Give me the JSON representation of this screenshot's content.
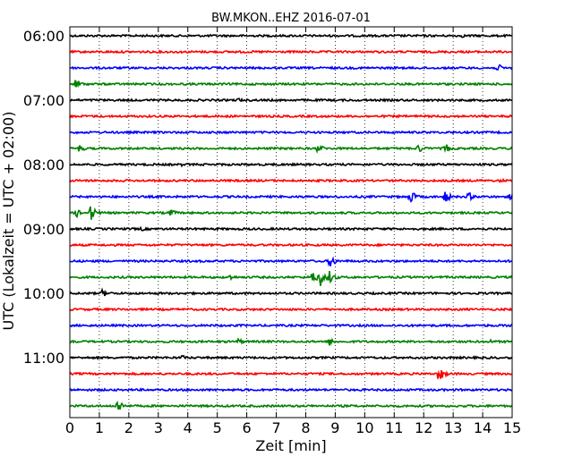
{
  "chart_data": {
    "type": "line",
    "title": "BW.MKON..EHZ 2016-07-01",
    "xlabel": "Zeit  [min]",
    "ylabel": "UTC (Lokalzeit = UTC + 02:00)",
    "xlim": [
      0,
      15
    ],
    "x_ticks": [
      "0",
      "1",
      "2",
      "3",
      "4",
      "5",
      "6",
      "7",
      "8",
      "9",
      "10",
      "11",
      "12",
      "13",
      "14",
      "15"
    ],
    "y_tick_labels": [
      "06:00",
      "07:00",
      "08:00",
      "09:00",
      "10:00",
      "11:00"
    ],
    "grid": "vertical-dotted",
    "series": [
      {
        "start": "06:00",
        "color": "#000000",
        "events": [
          {
            "x": 13.3,
            "amp": 2
          }
        ]
      },
      {
        "start": "06:15",
        "color": "#ff0000",
        "events": []
      },
      {
        "start": "06:30",
        "color": "#0000ff",
        "events": [
          {
            "x": 14.5,
            "amp": 5
          }
        ]
      },
      {
        "start": "06:45",
        "color": "#008000",
        "events": [
          {
            "x": 0.2,
            "amp": 7
          }
        ]
      },
      {
        "start": "07:00",
        "color": "#000000",
        "events": [
          {
            "x": 5.7,
            "amp": 3
          }
        ]
      },
      {
        "start": "07:15",
        "color": "#ff0000",
        "events": []
      },
      {
        "start": "07:30",
        "color": "#0000ff",
        "events": []
      },
      {
        "start": "07:45",
        "color": "#008000",
        "events": [
          {
            "x": 0.3,
            "amp": 5
          },
          {
            "x": 8.4,
            "amp": 6
          },
          {
            "x": 11.8,
            "amp": 6
          },
          {
            "x": 12.7,
            "amp": 7
          }
        ]
      },
      {
        "start": "08:00",
        "color": "#000000",
        "events": [
          {
            "x": 3.8,
            "amp": 2
          }
        ]
      },
      {
        "start": "08:15",
        "color": "#ff0000",
        "events": [
          {
            "x": 14.6,
            "amp": 3
          }
        ]
      },
      {
        "start": "08:30",
        "color": "#0000ff",
        "events": [
          {
            "x": 11.5,
            "amp": 10
          },
          {
            "x": 12.7,
            "amp": 8
          },
          {
            "x": 13.5,
            "amp": 6
          },
          {
            "x": 14.9,
            "amp": 4
          }
        ]
      },
      {
        "start": "08:45",
        "color": "#008000",
        "events": [
          {
            "x": 0.2,
            "amp": 6
          },
          {
            "x": 0.7,
            "amp": 10
          },
          {
            "x": 3.4,
            "amp": 5
          }
        ]
      },
      {
        "start": "09:00",
        "color": "#000000",
        "events": [
          {
            "x": 2.4,
            "amp": 3
          },
          {
            "x": 8.0,
            "amp": 2
          }
        ]
      },
      {
        "start": "09:15",
        "color": "#ff0000",
        "events": []
      },
      {
        "start": "09:30",
        "color": "#0000ff",
        "events": [
          {
            "x": 8.8,
            "amp": 9
          }
        ]
      },
      {
        "start": "09:45",
        "color": "#008000",
        "events": [
          {
            "x": 5.4,
            "amp": 4
          },
          {
            "x": 8.2,
            "amp": 9
          },
          {
            "x": 8.5,
            "amp": 10
          },
          {
            "x": 8.8,
            "amp": 8
          }
        ]
      },
      {
        "start": "10:00",
        "color": "#000000",
        "events": [
          {
            "x": 1.1,
            "amp": 5
          }
        ]
      },
      {
        "start": "10:15",
        "color": "#ff0000",
        "events": []
      },
      {
        "start": "10:30",
        "color": "#0000ff",
        "events": [
          {
            "x": 14.1,
            "amp": 2
          }
        ]
      },
      {
        "start": "10:45",
        "color": "#008000",
        "events": [
          {
            "x": 5.7,
            "amp": 4
          },
          {
            "x": 8.8,
            "amp": 5
          },
          {
            "x": 14.2,
            "amp": 3
          }
        ]
      },
      {
        "start": "11:00",
        "color": "#000000",
        "events": [
          {
            "x": 3.8,
            "amp": 3
          }
        ]
      },
      {
        "start": "11:15",
        "color": "#ff0000",
        "events": [
          {
            "x": 12.5,
            "amp": 10
          }
        ]
      },
      {
        "start": "11:30",
        "color": "#0000ff",
        "events": []
      },
      {
        "start": "11:45",
        "color": "#008000",
        "events": [
          {
            "x": 1.6,
            "amp": 9
          }
        ]
      }
    ]
  }
}
